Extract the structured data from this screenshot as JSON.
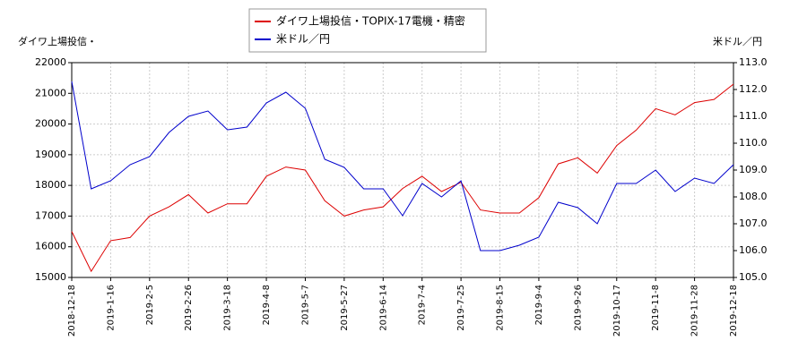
{
  "chart_data": {
    "type": "line",
    "y_label": "ダイワ上場投信・",
    "y2_label": "米ドル／円",
    "x": [
      "2018-12-18",
      null,
      "2019-1-16",
      null,
      "2019-2-5",
      null,
      "2019-2-26",
      null,
      "2019-3-18",
      null,
      "2019-4-8",
      null,
      "2019-5-7",
      null,
      "2019-5-27",
      null,
      "2019-6-14",
      null,
      "2019-7-4",
      null,
      "2019-7-25",
      null,
      "2019-8-15",
      null,
      "2019-9-4",
      null,
      "2019-9-26",
      null,
      "2019-10-17",
      null,
      "2019-11-8",
      null,
      "2019-11-28",
      null,
      "2019-12-18"
    ],
    "series": [
      {
        "name": "ダイワ上場投信・TOPIX-17電機・精密",
        "color": "#dd0000",
        "axis": "y",
        "values": [
          16500,
          15200,
          16200,
          16300,
          17000,
          17300,
          17700,
          17100,
          17400,
          17400,
          18300,
          18600,
          18500,
          17500,
          17000,
          17200,
          17300,
          17900,
          18300,
          17800,
          18100,
          17200,
          17100,
          17100,
          17600,
          18700,
          18900,
          18400,
          19300,
          19800,
          20500,
          20300,
          20700,
          20800,
          21300
        ]
      },
      {
        "name": "米ドル／円",
        "color": "#0000cc",
        "axis": "y2",
        "values": [
          112.3,
          108.3,
          108.6,
          109.2,
          109.5,
          110.4,
          111.0,
          111.2,
          110.5,
          110.6,
          111.5,
          111.9,
          111.3,
          109.4,
          109.1,
          108.3,
          108.3,
          107.3,
          108.5,
          108.0,
          108.6,
          106.0,
          106.0,
          106.2,
          106.5,
          107.8,
          107.6,
          107.0,
          108.5,
          108.5,
          109.0,
          108.2,
          108.7,
          108.5,
          109.2
        ]
      }
    ],
    "ylim": [
      15000,
      22000
    ],
    "yticks": [
      15000,
      16000,
      17000,
      18000,
      19000,
      20000,
      21000,
      22000
    ],
    "y2lim": [
      105,
      113
    ],
    "y2ticks": [
      {
        "value": 105,
        "label": "105.0"
      },
      {
        "value": 106,
        "label": "106.0"
      },
      {
        "value": 107,
        "label": "107.0"
      },
      {
        "value": 108,
        "label": "108.0"
      },
      {
        "value": 109,
        "label": "109.0"
      },
      {
        "value": 110,
        "label": "110.0"
      },
      {
        "value": 111,
        "label": "111.0"
      },
      {
        "value": 112,
        "label": "112.0"
      },
      {
        "value": 113,
        "label": "113.0"
      }
    ],
    "grid": true,
    "legend": "top"
  }
}
